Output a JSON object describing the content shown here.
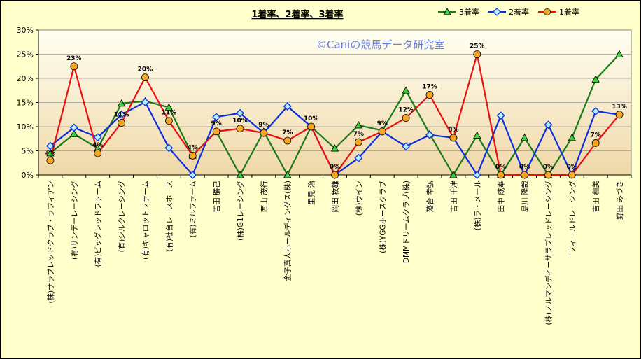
{
  "chart_data": {
    "type": "line",
    "title": "1着率、2着率、3着率",
    "watermark": "©Caniの競馬データ研究室",
    "y_ticks": [
      "0%",
      "5%",
      "10%",
      "15%",
      "20%",
      "25%",
      "30%"
    ],
    "ylim": [
      0,
      30
    ],
    "grid": true,
    "legend_position": "top-right",
    "colors": {
      "win": "#e81010",
      "second": "#0a2fe0",
      "third": "#1a7a1a",
      "marker_win": "#f5a623",
      "marker_second": "#b5f0ff",
      "marker_third": "#3dd13d"
    },
    "categories": [
      "(株)サラブレッドクラブ・ラフィアン",
      "(有)サンデーレーシング",
      "(有)ビッグレッドファーム",
      "(有)シルクレーシング",
      "(有)キャロットファーム",
      "(有)社台レースホース",
      "(有)ミルファーム",
      "吉田 勝己",
      "(株)G1レーシング",
      "西山 茂行",
      "金子真人ホールディングス(株)",
      "里見 治",
      "岡田 牧雄",
      "(株)ウイン",
      "(株)YGGホースクラブ",
      "DMMドリームクラブ(株)",
      "落合 幸弘",
      "吉田 千津",
      "(株)ラ・メール",
      "田中 成奉",
      "島川 隆哉",
      "(株)ノルマンディーサラブレッドレーシング",
      "フィールドレーシング",
      "吉田 和美",
      "野田 みづき"
    ],
    "series": [
      {
        "name": "3着率",
        "values": [
          4.5,
          8.5,
          5.5,
          14.8,
          15.3,
          14.0,
          4.0,
          9.0,
          0,
          9.0,
          0,
          10.0,
          5.5,
          10.3,
          9.2,
          17.5,
          8.5,
          0,
          8.2,
          0,
          7.7,
          0,
          7.7,
          19.8,
          25.0
        ]
      },
      {
        "name": "2着率",
        "values": [
          6.0,
          9.8,
          7.8,
          12.5,
          15.1,
          5.6,
          0,
          12.0,
          12.8,
          8.7,
          14.2,
          10.0,
          0,
          3.5,
          9.0,
          5.9,
          8.3,
          7.7,
          0,
          12.3,
          0,
          10.4,
          0,
          13.2,
          12.5
        ]
      },
      {
        "name": "1着率",
        "values": [
          3.0,
          22.5,
          4.5,
          10.8,
          20.2,
          11.2,
          4.0,
          9.0,
          9.6,
          8.7,
          7.1,
          10.0,
          0,
          6.8,
          9.0,
          11.8,
          16.6,
          7.7,
          25.0,
          0,
          0,
          0,
          0,
          6.6,
          12.5
        ]
      }
    ],
    "data_labels": [
      "3%",
      "23%",
      "4%",
      "11%",
      "20%",
      "11%",
      "4%",
      "9%",
      "10%",
      "9%",
      "7%",
      "10%",
      "0%",
      "7%",
      "9%",
      "12%",
      "17%",
      "8%",
      "25%",
      "0%",
      "0%",
      "0%",
      "0%",
      "7%",
      "13%"
    ]
  }
}
